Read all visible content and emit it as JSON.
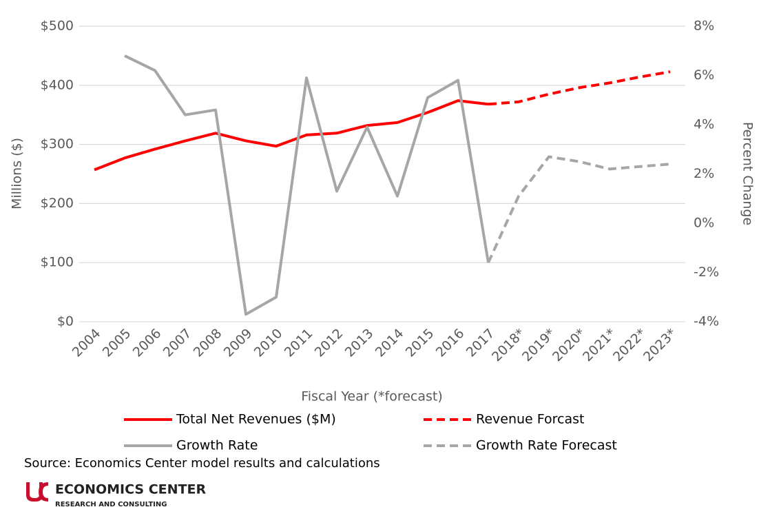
{
  "chart_data": {
    "type": "line",
    "categories": [
      "2004",
      "2005",
      "2006",
      "2007",
      "2008",
      "2009",
      "2010",
      "2011",
      "2012",
      "2013",
      "2014",
      "2015",
      "2016",
      "2017",
      "2018*",
      "2019*",
      "2020*",
      "2021*",
      "2022*",
      "2023*"
    ],
    "series": [
      {
        "name": "Total Net Revenues ($M)",
        "color": "#ff0000",
        "dash": false,
        "axis": "y",
        "values": [
          257,
          277,
          292,
          306,
          319,
          306,
          297,
          316,
          319,
          332,
          337,
          354,
          374,
          368,
          null,
          null,
          null,
          null,
          null,
          null
        ]
      },
      {
        "name": "Revenue Forcast",
        "color": "#ff0000",
        "dash": true,
        "axis": "y",
        "values": [
          null,
          null,
          null,
          null,
          null,
          null,
          null,
          null,
          null,
          null,
          null,
          null,
          null,
          368,
          372,
          385,
          396,
          404,
          414,
          423
        ]
      },
      {
        "name": "Growth Rate",
        "color": "#a6a6a6",
        "dash": false,
        "axis": "y2",
        "values": [
          null,
          6.8,
          6.2,
          4.4,
          4.6,
          -3.7,
          -3.0,
          5.9,
          1.3,
          3.9,
          1.1,
          5.1,
          5.8,
          -1.6,
          null,
          null,
          null,
          null,
          null,
          null
        ]
      },
      {
        "name": "Growth Rate Forecast",
        "color": "#a6a6a6",
        "dash": true,
        "axis": "y2",
        "values": [
          null,
          null,
          null,
          null,
          null,
          null,
          null,
          null,
          null,
          null,
          null,
          null,
          null,
          -1.6,
          1.1,
          2.7,
          2.5,
          2.2,
          2.3,
          2.4
        ]
      }
    ],
    "ylim": [
      0,
      500
    ],
    "yticks": [
      {
        "value": 0,
        "label": "$0"
      },
      {
        "value": 100,
        "label": "$100"
      },
      {
        "value": 200,
        "label": "$200"
      },
      {
        "value": 300,
        "label": "$300"
      },
      {
        "value": 400,
        "label": "$400"
      },
      {
        "value": 500,
        "label": "$500"
      }
    ],
    "y2lim": [
      -4,
      8
    ],
    "y2ticks": [
      {
        "value": -4,
        "label": "-4%"
      },
      {
        "value": -2,
        "label": "-2%"
      },
      {
        "value": 0,
        "label": "0%"
      },
      {
        "value": 2,
        "label": "2%"
      },
      {
        "value": 4,
        "label": "4%"
      },
      {
        "value": 6,
        "label": "6%"
      },
      {
        "value": 8,
        "label": "8%"
      }
    ],
    "ylabel": "Millions ($)",
    "y2label": "Percent Change",
    "xlabel": "Fiscal Year (*forecast)",
    "grid": true,
    "legend": "bottom",
    "source": "Source: Economics Center model results and calculations"
  },
  "logo": {
    "name": "ECONOMICS CENTER",
    "tagline": "RESEARCH AND CONSULTING"
  }
}
